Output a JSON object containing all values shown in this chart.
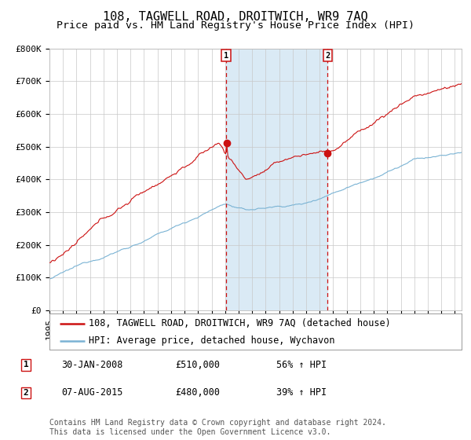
{
  "title": "108, TAGWELL ROAD, DROITWICH, WR9 7AQ",
  "subtitle": "Price paid vs. HM Land Registry's House Price Index (HPI)",
  "legend_line1": "108, TAGWELL ROAD, DROITWICH, WR9 7AQ (detached house)",
  "legend_line2": "HPI: Average price, detached house, Wychavon",
  "transaction1_date": "30-JAN-2008",
  "transaction1_price": 510000,
  "transaction1_label": "56% ↑ HPI",
  "transaction2_date": "07-AUG-2015",
  "transaction2_price": 480000,
  "transaction2_label": "39% ↑ HPI",
  "footer": "Contains HM Land Registry data © Crown copyright and database right 2024.\nThis data is licensed under the Open Government Licence v3.0.",
  "hpi_color": "#7ab3d4",
  "price_color": "#cc1111",
  "background_color": "#ffffff",
  "plot_bg_color": "#ffffff",
  "shaded_region_color": "#daeaf5",
  "vline_color": "#cc1111",
  "ylim": [
    0,
    800000
  ],
  "yticks": [
    0,
    100000,
    200000,
    300000,
    400000,
    500000,
    600000,
    700000,
    800000
  ],
  "ytick_labels": [
    "£0",
    "£100K",
    "£200K",
    "£300K",
    "£400K",
    "£500K",
    "£600K",
    "£700K",
    "£800K"
  ],
  "start_year": 1995,
  "end_year": 2025,
  "title_fontsize": 11,
  "subtitle_fontsize": 9.5,
  "axis_fontsize": 8,
  "legend_fontsize": 8.5,
  "footer_fontsize": 7
}
